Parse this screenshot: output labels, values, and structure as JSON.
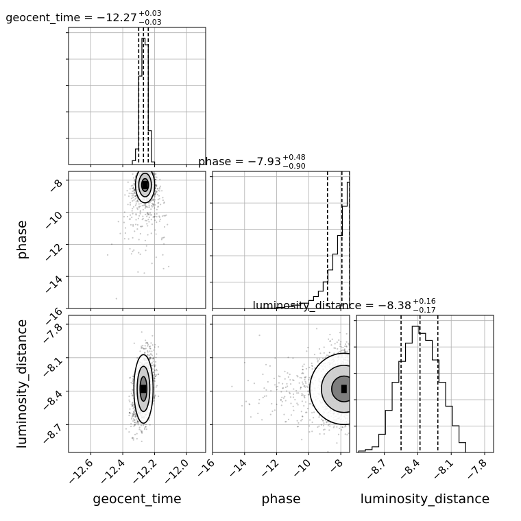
{
  "chart_data": {
    "type": "corner",
    "parameters": [
      "geocent_time",
      "phase",
      "luminosity_distance"
    ],
    "titles": [
      {
        "name": "geocent_time",
        "median": "−12.27",
        "plus": "+0.03",
        "minus": "−0.03"
      },
      {
        "name": "phase",
        "median": "−7.93",
        "plus": "+0.48",
        "minus": "−0.90"
      },
      {
        "name": "luminosity_distance",
        "median": "−8.38",
        "plus": "+0.16",
        "minus": "−0.17"
      }
    ],
    "ranges": {
      "geocent_time": [
        -12.74,
        -11.88
      ],
      "phase": [
        -16.0,
        -7.45
      ],
      "luminosity_distance": [
        -8.95,
        -7.72
      ]
    },
    "ticks": {
      "geocent_time": [
        -12.6,
        -12.4,
        -12.2,
        -12.0
      ],
      "phase": [
        -16,
        -14,
        -12,
        -10,
        -8
      ],
      "luminosity_distance": [
        -8.7,
        -8.4,
        -8.1,
        -7.8
      ]
    },
    "tick_labels": {
      "geocent_time": [
        "−12.6",
        "−12.4",
        "−12.2",
        "−12.0"
      ],
      "phase": [
        "−16",
        "−14",
        "−12",
        "−10",
        "−8"
      ],
      "luminosity_distance": [
        "−8.7",
        "−8.4",
        "−8.1",
        "−7.8"
      ]
    },
    "quantiles": {
      "geocent_time": [
        -12.3,
        -12.27,
        -12.24
      ],
      "phase": [
        -8.83,
        -7.93,
        -7.45
      ],
      "luminosity_distance": [
        -8.55,
        -8.38,
        -8.22
      ]
    },
    "histograms": {
      "geocent_time": {
        "bin_edges": [
          -12.34,
          -12.32,
          -12.3,
          -12.28,
          -12.26,
          -12.24,
          -12.22,
          -12.2
        ],
        "counts": [
          0.03,
          0.12,
          0.68,
          0.97,
          0.92,
          0.26,
          0.02
        ]
      },
      "phase": {
        "bin_edges": [
          -13.0,
          -12.0,
          -11.5,
          -11.0,
          -10.5,
          -10.0,
          -9.7,
          -9.4,
          -9.1,
          -8.8,
          -8.5,
          -8.2,
          -7.9,
          -7.6,
          -7.45
        ],
        "counts": [
          0.003,
          0.008,
          0.015,
          0.025,
          0.04,
          0.06,
          0.09,
          0.13,
          0.2,
          0.29,
          0.41,
          0.55,
          0.77,
          0.95
        ]
      },
      "luminosity_distance": {
        "bin_edges": [
          -8.93,
          -8.87,
          -8.81,
          -8.75,
          -8.69,
          -8.63,
          -8.57,
          -8.51,
          -8.45,
          -8.39,
          -8.33,
          -8.27,
          -8.21,
          -8.15,
          -8.09,
          -8.03,
          -7.97
        ],
        "counts": [
          0.01,
          0.02,
          0.04,
          0.13,
          0.3,
          0.5,
          0.65,
          0.78,
          0.9,
          0.85,
          0.8,
          0.66,
          0.5,
          0.33,
          0.19,
          0.07
        ]
      }
    },
    "scatter_summary": {
      "geocent_time_vs_phase": {
        "center": [
          -12.26,
          -8.3
        ],
        "tail_direction": "toward low phase"
      },
      "geocent_time_vs_luminosity_distance": {
        "center": [
          -12.27,
          -8.38
        ]
      },
      "phase_vs_luminosity_distance": {
        "center": [
          -7.8,
          -8.38
        ]
      }
    },
    "grid": true
  }
}
